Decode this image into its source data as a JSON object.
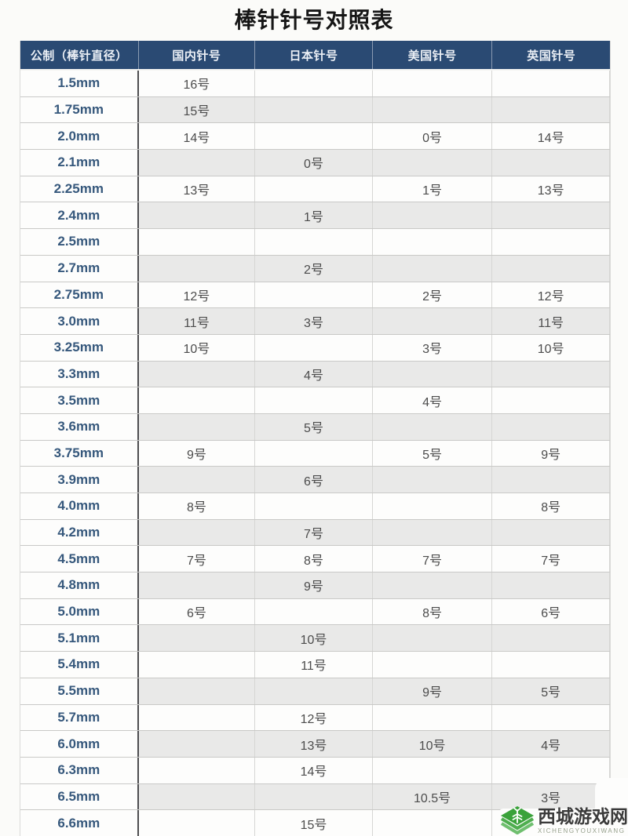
{
  "page": {
    "title": "棒针针号对照表"
  },
  "table": {
    "headers": [
      "公制（棒针直径）",
      "国内针号",
      "日本针号",
      "美国针号",
      "英国针号"
    ],
    "rows": [
      [
        "1.5mm",
        "16号",
        "",
        "",
        ""
      ],
      [
        "1.75mm",
        "15号",
        "",
        "",
        ""
      ],
      [
        "2.0mm",
        "14号",
        "",
        "0号",
        "14号"
      ],
      [
        "2.1mm",
        "",
        "0号",
        "",
        ""
      ],
      [
        "2.25mm",
        "13号",
        "",
        "1号",
        "13号"
      ],
      [
        "2.4mm",
        "",
        "1号",
        "",
        ""
      ],
      [
        "2.5mm",
        "",
        "",
        "",
        ""
      ],
      [
        "2.7mm",
        "",
        "2号",
        "",
        ""
      ],
      [
        "2.75mm",
        "12号",
        "",
        "2号",
        "12号"
      ],
      [
        "3.0mm",
        "11号",
        "3号",
        "",
        "11号"
      ],
      [
        "3.25mm",
        "10号",
        "",
        "3号",
        "10号"
      ],
      [
        "3.3mm",
        "",
        "4号",
        "",
        ""
      ],
      [
        "3.5mm",
        "",
        "",
        "4号",
        ""
      ],
      [
        "3.6mm",
        "",
        "5号",
        "",
        ""
      ],
      [
        "3.75mm",
        "9号",
        "",
        "5号",
        "9号"
      ],
      [
        "3.9mm",
        "",
        "6号",
        "",
        ""
      ],
      [
        "4.0mm",
        "8号",
        "",
        "",
        "8号"
      ],
      [
        "4.2mm",
        "",
        "7号",
        "",
        ""
      ],
      [
        "4.5mm",
        "7号",
        "8号",
        "7号",
        "7号"
      ],
      [
        "4.8mm",
        "",
        "9号",
        "",
        ""
      ],
      [
        "5.0mm",
        "6号",
        "",
        "8号",
        "6号"
      ],
      [
        "5.1mm",
        "",
        "10号",
        "",
        ""
      ],
      [
        "5.4mm",
        "",
        "11号",
        "",
        ""
      ],
      [
        "5.5mm",
        "",
        "",
        "9号",
        "5号"
      ],
      [
        "5.7mm",
        "",
        "12号",
        "",
        ""
      ],
      [
        "6.0mm",
        "",
        "13号",
        "10号",
        "4号"
      ],
      [
        "6.3mm",
        "",
        "14号",
        "",
        ""
      ],
      [
        "6.5mm",
        "",
        "",
        "10.5号",
        "3号"
      ],
      [
        "6.6mm",
        "",
        "15号",
        "",
        ""
      ]
    ]
  },
  "watermark": {
    "name": "西城游戏网",
    "romanized": "XICHENGYOUXIWANG",
    "logo_icon": "wheat-sheaf-icon"
  },
  "colors": {
    "header_bg": "#2a4a73",
    "header_text": "#ecf0f6",
    "row_alt_bg": "#e9e9e8",
    "metric_text": "#36587c",
    "cell_text": "#4c4c4c",
    "divider_dark": "#4d4d50",
    "logo_green": "#3aa23a",
    "watermark_roman_text": "#96a08c"
  }
}
